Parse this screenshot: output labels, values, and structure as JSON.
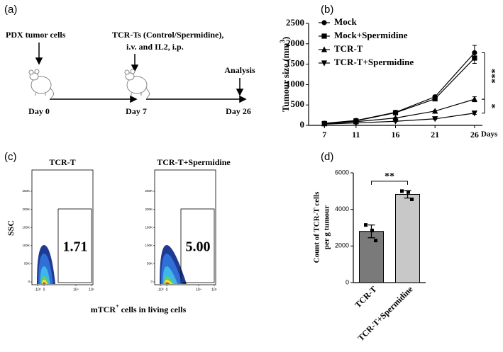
{
  "timeline": {
    "panel_label": "(a)",
    "step1": "PDX tumor cells",
    "step2_line1": "TCR-Ts (Control/Spermidine),",
    "step2_line2": "i.v. and IL2, i.p.",
    "step3": "Analysis",
    "days": [
      "Day 0",
      "Day 7",
      "Day 26"
    ]
  },
  "flow": {
    "panel_label": "(c)",
    "ylabel": "SSC",
    "xlabel": [
      "mTCR",
      "+",
      " cells in living cells"
    ],
    "yticks": [
      "250K",
      "200K",
      "150K",
      "100K",
      "50K",
      "0"
    ],
    "xticks": [
      "-10³",
      "0",
      "10⁴",
      "10⁵"
    ],
    "plots": [
      {
        "title": "TCR-T",
        "gate_value": "1.71"
      },
      {
        "title": "TCR-T+Spermidine",
        "gate_value": "5.00"
      }
    ]
  },
  "chart_data": [
    {
      "type": "line",
      "panel_label": "(b)",
      "ylabel": [
        "Tumour size (mm",
        "3",
        ")"
      ],
      "xlabel": "Days",
      "x": [
        7,
        11,
        16,
        21,
        26
      ],
      "xlim": [
        5,
        27
      ],
      "xticks": [
        7,
        11,
        16,
        21,
        26
      ],
      "ylim": [
        0,
        2500
      ],
      "yticks": [
        0,
        500,
        1000,
        1500,
        2000,
        2500
      ],
      "legend": "upper left",
      "series": [
        {
          "name": "Mock",
          "color": "#000000",
          "marker": "circle",
          "values": [
            50,
            120,
            320,
            700,
            1780
          ],
          "errors": [
            10,
            15,
            20,
            40,
            180
          ]
        },
        {
          "name": "Mock+Spermidine",
          "color": "#000000",
          "marker": "square",
          "values": [
            45,
            110,
            310,
            650,
            1650
          ],
          "errors": [
            10,
            15,
            20,
            40,
            130
          ]
        },
        {
          "name": "TCR-T",
          "color": "#000000",
          "marker": "triangle",
          "values": [
            40,
            90,
            180,
            350,
            640
          ],
          "errors": [
            5,
            10,
            15,
            20,
            60
          ]
        },
        {
          "name": "TCR-T+Spermidine",
          "color": "#000000",
          "marker": "triangle-down",
          "values": [
            30,
            60,
            100,
            160,
            300
          ],
          "errors": [
            5,
            5,
            10,
            15,
            30
          ]
        }
      ],
      "annotations": [
        {
          "text": "***"
        },
        {
          "text": "*"
        }
      ]
    },
    {
      "type": "bar",
      "panel_label": "(d)",
      "ylabel": [
        "Count of TCR-T cells",
        "per g tumour"
      ],
      "categories": [
        "TCR-T",
        "TCR-T+Spermidine"
      ],
      "values": [
        2800,
        4820
      ],
      "errors": [
        350,
        200
      ],
      "colors": [
        "#7a7a7a",
        "#c8c8c8"
      ],
      "points": [
        [
          3150,
          2850,
          2300
        ],
        [
          5000,
          4950,
          4550
        ]
      ],
      "ylim": [
        0,
        6000
      ],
      "yticks": [
        0,
        2000,
        4000,
        6000
      ],
      "annotations": [
        {
          "text": "**"
        }
      ]
    }
  ]
}
